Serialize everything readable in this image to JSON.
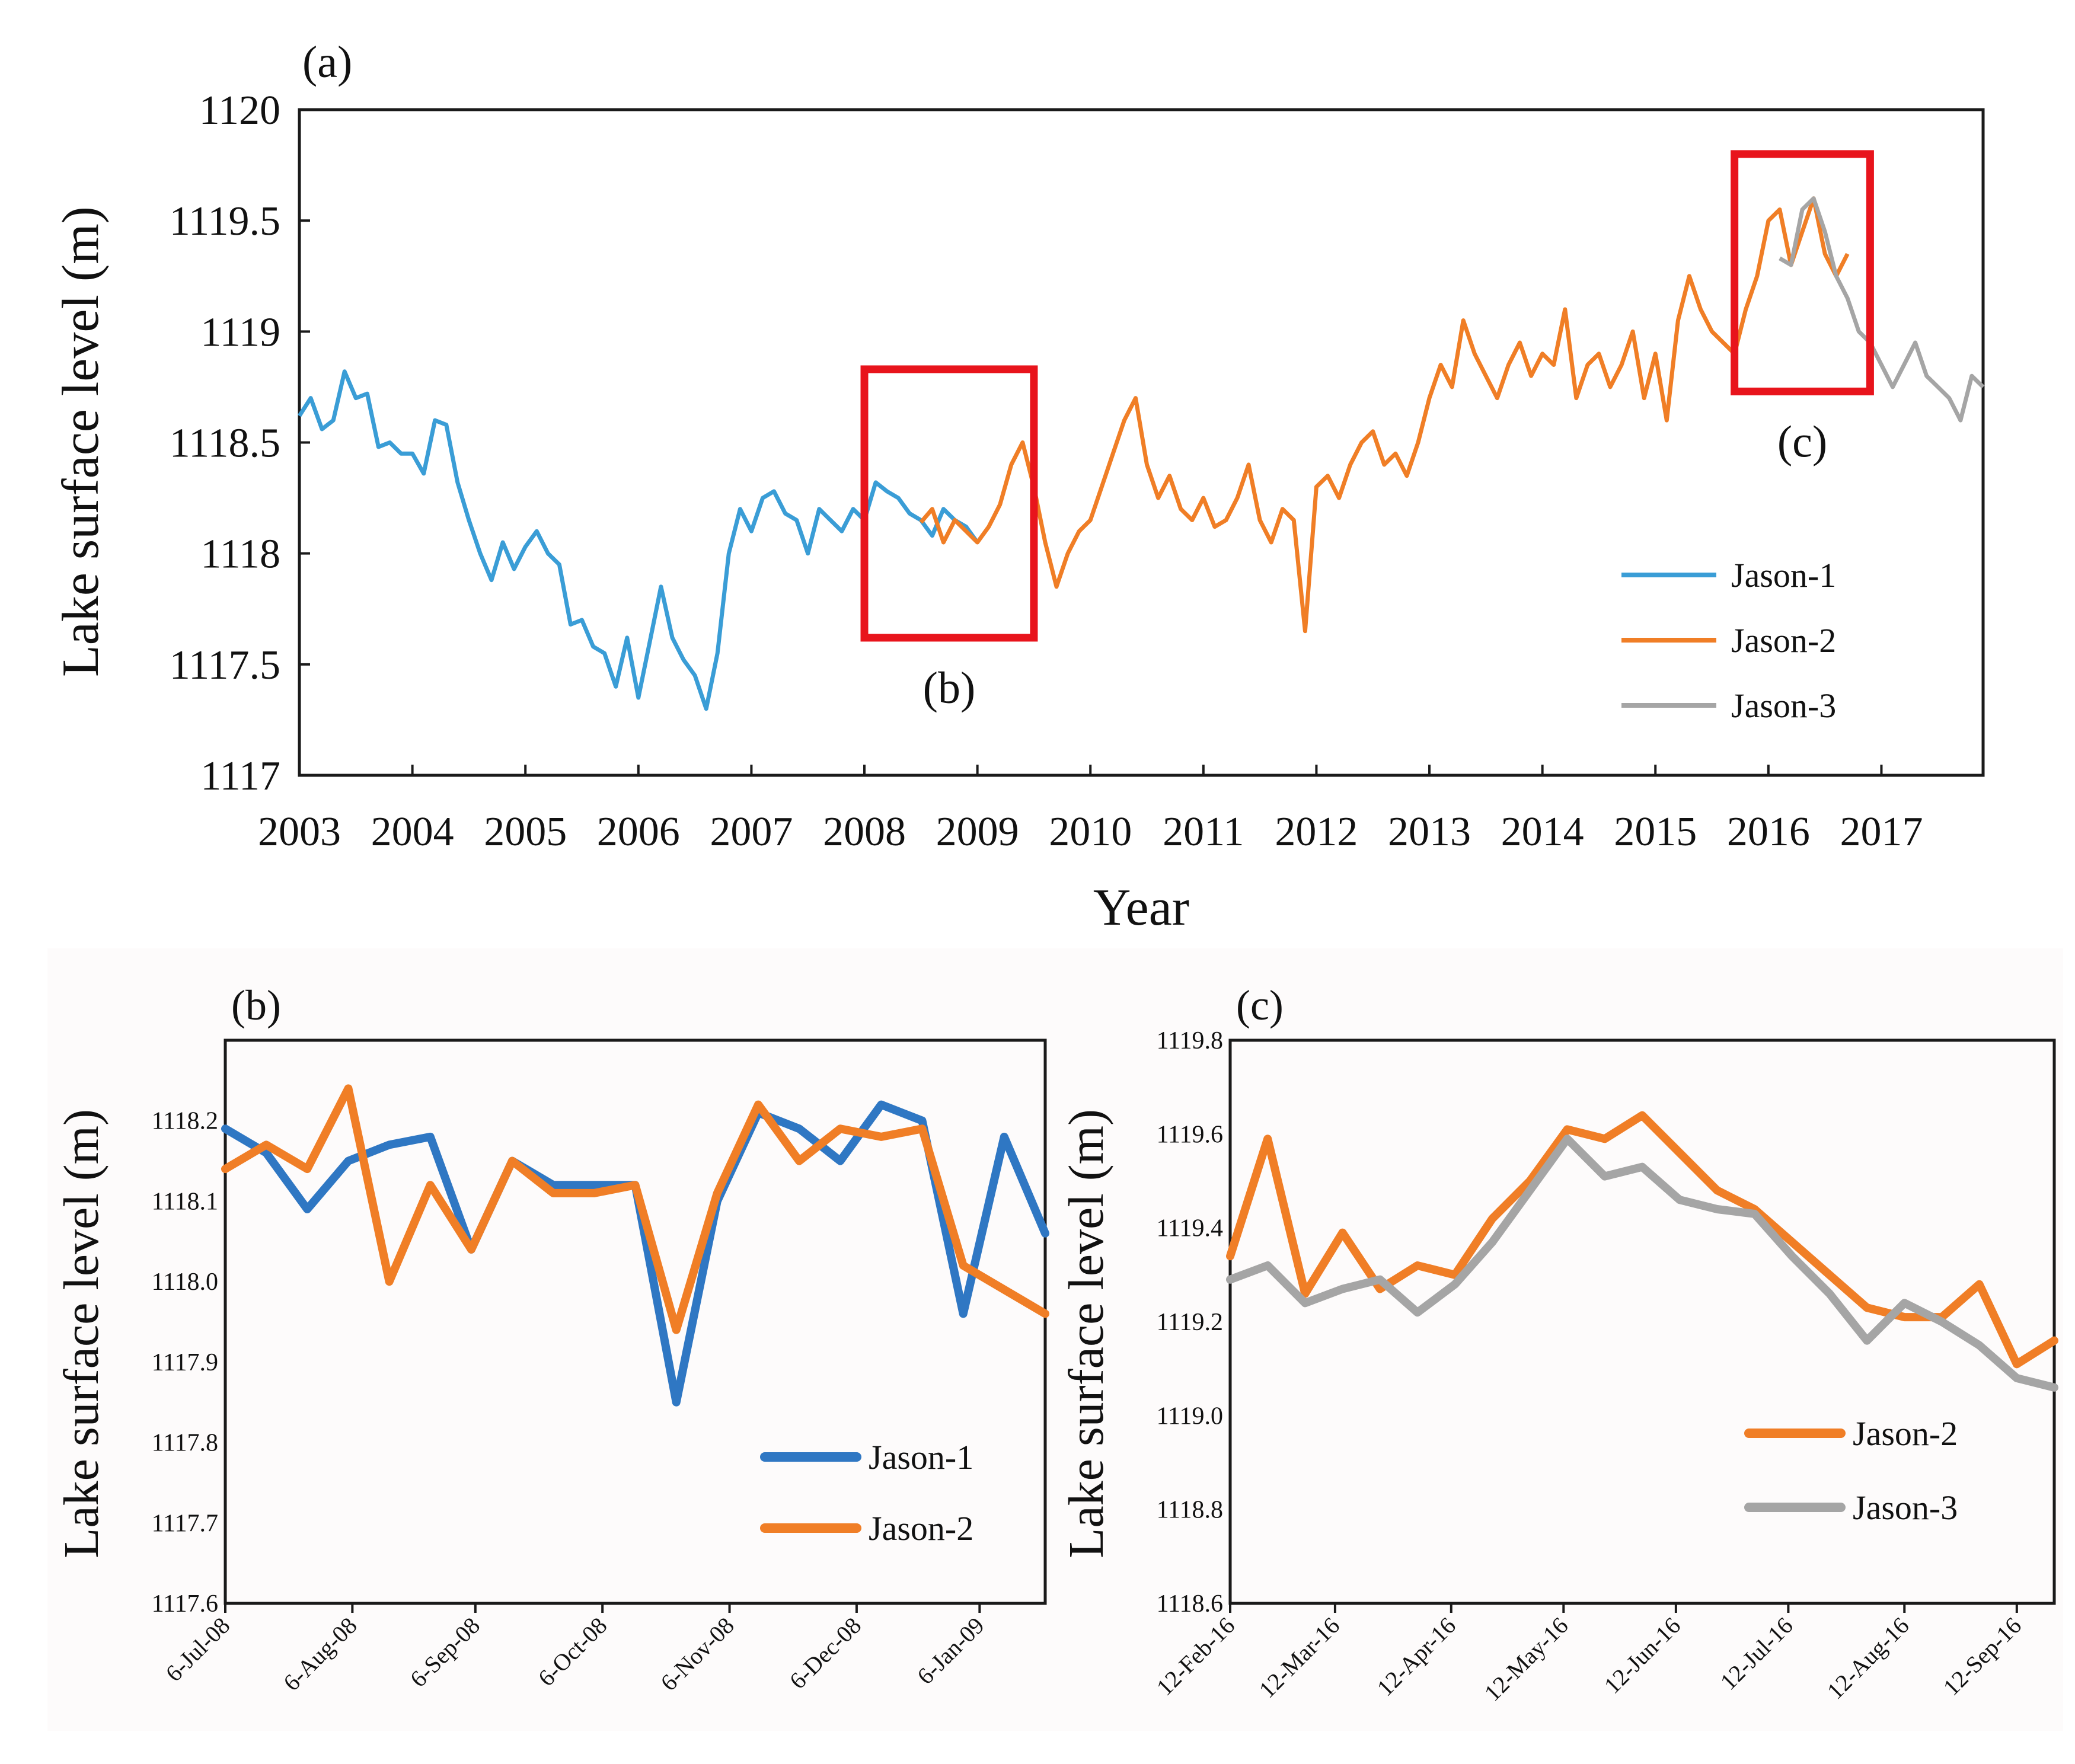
{
  "colors": {
    "jason1": "#3a9dd6",
    "jason1_dark": "#2f77c3",
    "jason2": "#f07e26",
    "jason3": "#a5a5a5",
    "highlight": "#e8141c"
  },
  "chart_data": [
    {
      "id": "a",
      "type": "line",
      "panel_label": "(a)",
      "xlabel": "Year",
      "ylabel": "Lake surface level (m)",
      "xlim": [
        2003,
        2017.9
      ],
      "ylim": [
        1117,
        1120
      ],
      "yticks": [
        1117,
        1117.5,
        1118,
        1118.5,
        1119,
        1119.5,
        1120
      ],
      "ytick_labels": [
        "1117",
        "1117.5",
        "1118",
        "1118.5",
        "1119",
        "1119.5",
        "1120"
      ],
      "xticks": [
        2003,
        2004,
        2005,
        2006,
        2007,
        2008,
        2009,
        2010,
        2011,
        2012,
        2013,
        2014,
        2015,
        2016,
        2017
      ],
      "xtick_labels": [
        "2003",
        "2004",
        "2005",
        "2006",
        "2007",
        "2008",
        "2009",
        "2010",
        "2011",
        "2012",
        "2013",
        "2014",
        "2015",
        "2016",
        "2017"
      ],
      "legend": {
        "position": "bottom-right",
        "entries": [
          "Jason-1",
          "Jason-2",
          "Jason-3"
        ]
      },
      "series": [
        {
          "name": "Jason-1",
          "x": [
            2003.0,
            2003.1,
            2003.2,
            2003.3,
            2003.4,
            2003.5,
            2003.6,
            2003.7,
            2003.8,
            2003.9,
            2004.0,
            2004.1,
            2004.2,
            2004.3,
            2004.4,
            2004.5,
            2004.6,
            2004.7,
            2004.8,
            2004.9,
            2005.0,
            2005.1,
            2005.2,
            2005.3,
            2005.4,
            2005.5,
            2005.6,
            2005.7,
            2005.8,
            2005.9,
            2006.0,
            2006.1,
            2006.2,
            2006.3,
            2006.4,
            2006.5,
            2006.6,
            2006.7,
            2006.8,
            2006.9,
            2007.0,
            2007.1,
            2007.2,
            2007.3,
            2007.4,
            2007.5,
            2007.6,
            2007.7,
            2007.8,
            2007.9,
            2008.0,
            2008.1,
            2008.2,
            2008.3,
            2008.4,
            2008.5,
            2008.6,
            2008.7,
            2008.8,
            2008.9,
            2009.0
          ],
          "y": [
            1118.62,
            1118.7,
            1118.56,
            1118.6,
            1118.82,
            1118.7,
            1118.72,
            1118.48,
            1118.5,
            1118.45,
            1118.45,
            1118.36,
            1118.6,
            1118.58,
            1118.32,
            1118.15,
            1118.0,
            1117.88,
            1118.05,
            1117.93,
            1118.03,
            1118.1,
            1118.0,
            1117.95,
            1117.68,
            1117.7,
            1117.58,
            1117.55,
            1117.4,
            1117.62,
            1117.35,
            1117.6,
            1117.85,
            1117.62,
            1117.52,
            1117.45,
            1117.3,
            1117.55,
            1118.0,
            1118.2,
            1118.1,
            1118.25,
            1118.28,
            1118.18,
            1118.15,
            1118.0,
            1118.2,
            1118.15,
            1118.1,
            1118.2,
            1118.15,
            1118.32,
            1118.28,
            1118.25,
            1118.18,
            1118.15,
            1118.08,
            1118.2,
            1118.15,
            1118.12,
            1118.05
          ]
        },
        {
          "name": "Jason-2",
          "x": [
            2008.5,
            2008.6,
            2008.7,
            2008.8,
            2008.9,
            2009.0,
            2009.1,
            2009.2,
            2009.3,
            2009.4,
            2009.5,
            2009.6,
            2009.7,
            2009.8,
            2009.9,
            2010.0,
            2010.1,
            2010.2,
            2010.3,
            2010.4,
            2010.5,
            2010.6,
            2010.7,
            2010.8,
            2010.9,
            2011.0,
            2011.1,
            2011.2,
            2011.3,
            2011.4,
            2011.5,
            2011.6,
            2011.7,
            2011.8,
            2011.9,
            2012.0,
            2012.1,
            2012.2,
            2012.3,
            2012.4,
            2012.5,
            2012.6,
            2012.7,
            2012.8,
            2012.9,
            2013.0,
            2013.1,
            2013.2,
            2013.3,
            2013.4,
            2013.5,
            2013.6,
            2013.7,
            2013.8,
            2013.9,
            2014.0,
            2014.1,
            2014.2,
            2014.3,
            2014.4,
            2014.5,
            2014.6,
            2014.7,
            2014.8,
            2014.9,
            2015.0,
            2015.1,
            2015.2,
            2015.3,
            2015.4,
            2015.5,
            2015.6,
            2015.7,
            2015.8,
            2015.9,
            2016.0,
            2016.1,
            2016.2,
            2016.3,
            2016.4,
            2016.5,
            2016.6,
            2016.7
          ],
          "y": [
            1118.14,
            1118.2,
            1118.05,
            1118.15,
            1118.1,
            1118.05,
            1118.12,
            1118.22,
            1118.4,
            1118.5,
            1118.3,
            1118.05,
            1117.85,
            1118.0,
            1118.1,
            1118.15,
            1118.3,
            1118.45,
            1118.6,
            1118.7,
            1118.4,
            1118.25,
            1118.35,
            1118.2,
            1118.15,
            1118.25,
            1118.12,
            1118.15,
            1118.25,
            1118.4,
            1118.15,
            1118.05,
            1118.2,
            1118.15,
            1117.65,
            1118.3,
            1118.35,
            1118.25,
            1118.4,
            1118.5,
            1118.55,
            1118.4,
            1118.45,
            1118.35,
            1118.5,
            1118.7,
            1118.85,
            1118.75,
            1119.05,
            1118.9,
            1118.8,
            1118.7,
            1118.85,
            1118.95,
            1118.8,
            1118.9,
            1118.85,
            1119.1,
            1118.7,
            1118.85,
            1118.9,
            1118.75,
            1118.85,
            1119.0,
            1118.7,
            1118.9,
            1118.6,
            1119.05,
            1119.25,
            1119.1,
            1119.0,
            1118.95,
            1118.9,
            1119.1,
            1119.25,
            1119.5,
            1119.55,
            1119.3,
            1119.45,
            1119.6,
            1119.35,
            1119.25,
            1119.35
          ]
        },
        {
          "name": "Jason-3",
          "x": [
            2016.1,
            2016.2,
            2016.3,
            2016.4,
            2016.5,
            2016.6,
            2016.7,
            2016.8,
            2016.9,
            2017.0,
            2017.1,
            2017.2,
            2017.3,
            2017.4,
            2017.5,
            2017.6,
            2017.7,
            2017.8,
            2017.9
          ],
          "y": [
            1119.33,
            1119.3,
            1119.55,
            1119.6,
            1119.45,
            1119.25,
            1119.15,
            1119.0,
            1118.95,
            1118.85,
            1118.75,
            1118.85,
            1118.95,
            1118.8,
            1118.75,
            1118.7,
            1118.6,
            1118.8,
            1118.75
          ]
        }
      ],
      "annotations": [
        {
          "label": "(b)",
          "x_range": [
            2008.0,
            2009.5
          ],
          "y_range": [
            1117.62,
            1118.83
          ]
        },
        {
          "label": "(c)",
          "x_range": [
            2015.7,
            2016.9
          ],
          "y_range": [
            1118.73,
            1119.8
          ]
        }
      ]
    },
    {
      "id": "b",
      "type": "line",
      "panel_label": "(b)",
      "xlabel": "",
      "ylabel": "Lake surface level (m)",
      "ylim": [
        1117.6,
        1118.3
      ],
      "yticks": [
        1117.6,
        1117.7,
        1117.8,
        1117.9,
        1118.0,
        1118.1,
        1118.2
      ],
      "ytick_labels": [
        "1117.6",
        "1117.7",
        "1117.8",
        "1117.9",
        "1118.0",
        "1118.1",
        "1118.2"
      ],
      "x_start_label": "6-Jul-08",
      "x_end_index": 20,
      "xticks": [
        0,
        3.1,
        6.1,
        9.2,
        12.3,
        15.4,
        18.4
      ],
      "xtick_labels": [
        "6-Jul-08",
        "6-Aug-08",
        "6-Sep-08",
        "6-Oct-08",
        "6-Nov-08",
        "6-Dec-08",
        "6-Jan-09"
      ],
      "legend": {
        "position": "bottom-right",
        "entries": [
          "Jason-1",
          "Jason-2"
        ]
      },
      "series": [
        {
          "name": "Jason-1",
          "x": [
            0,
            1,
            2,
            3,
            4,
            5,
            6,
            7,
            8,
            9,
            10,
            11,
            12,
            13,
            14,
            15,
            16,
            17,
            18,
            19,
            20
          ],
          "y": [
            1118.19,
            1118.16,
            1118.09,
            1118.15,
            1118.17,
            1118.18,
            1118.04,
            1118.15,
            1118.12,
            1118.12,
            1118.12,
            1117.85,
            1118.1,
            1118.21,
            1118.19,
            1118.15,
            1118.22,
            1118.2,
            1117.96,
            1118.18,
            1118.06
          ]
        },
        {
          "name": "Jason-2",
          "x": [
            0,
            1,
            2,
            3,
            4,
            5,
            6,
            7,
            8,
            9,
            10,
            11,
            12,
            13,
            14,
            15,
            16,
            17,
            18,
            19,
            20
          ],
          "y": [
            1118.14,
            1118.17,
            1118.14,
            1118.24,
            1118.0,
            1118.12,
            1118.04,
            1118.15,
            1118.11,
            1118.11,
            1118.12,
            1117.94,
            1118.11,
            1118.22,
            1118.15,
            1118.19,
            1118.18,
            1118.19,
            1118.02,
            1117.99,
            1117.96
          ]
        }
      ]
    },
    {
      "id": "c",
      "type": "line",
      "panel_label": "(c)",
      "xlabel": "",
      "ylabel": "Lake surface level (m)",
      "ylim": [
        1118.6,
        1119.8
      ],
      "yticks": [
        1118.6,
        1118.8,
        1119.0,
        1119.2,
        1119.4,
        1119.6,
        1119.8
      ],
      "ytick_labels": [
        "1118.6",
        "1118.8",
        "1119.0",
        "1119.2",
        "1119.4",
        "1119.6",
        "1119.8"
      ],
      "x_start_label": "12-Feb-16",
      "x_end_index": 22,
      "xticks": [
        0,
        2.8,
        5.9,
        8.9,
        11.9,
        14.9,
        18.0,
        21.0
      ],
      "xtick_labels": [
        "12-Feb-16",
        "12-Mar-16",
        "12-Apr-16",
        "12-May-16",
        "12-Jun-16",
        "12-Jul-16",
        "12-Aug-16",
        "12-Sep-16"
      ],
      "legend": {
        "position": "bottom-right",
        "entries": [
          "Jason-2",
          "Jason-3"
        ]
      },
      "series": [
        {
          "name": "Jason-2",
          "x": [
            0,
            1,
            2,
            3,
            4,
            5,
            6,
            7,
            8,
            9,
            10,
            11,
            12,
            13,
            14,
            15,
            16,
            17,
            18,
            19,
            20,
            21,
            22
          ],
          "y": [
            1119.34,
            1119.59,
            1119.26,
            1119.39,
            1119.27,
            1119.32,
            1119.3,
            1119.42,
            1119.5,
            1119.61,
            1119.59,
            1119.64,
            1119.56,
            1119.48,
            1119.44,
            1119.37,
            1119.3,
            1119.23,
            1119.21,
            1119.21,
            1119.28,
            1119.11,
            1119.16
          ]
        },
        {
          "name": "Jason-3",
          "x": [
            0,
            1,
            2,
            3,
            4,
            5,
            6,
            7,
            8,
            9,
            10,
            11,
            12,
            13,
            14,
            15,
            16,
            17,
            18,
            19,
            20,
            21,
            22
          ],
          "y": [
            1119.29,
            1119.32,
            1119.24,
            1119.27,
            1119.29,
            1119.22,
            1119.28,
            1119.37,
            1119.48,
            1119.59,
            1119.51,
            1119.53,
            1119.46,
            1119.44,
            1119.43,
            1119.34,
            1119.26,
            1119.16,
            1119.24,
            1119.2,
            1119.15,
            1119.08,
            1119.06
          ]
        }
      ]
    }
  ]
}
